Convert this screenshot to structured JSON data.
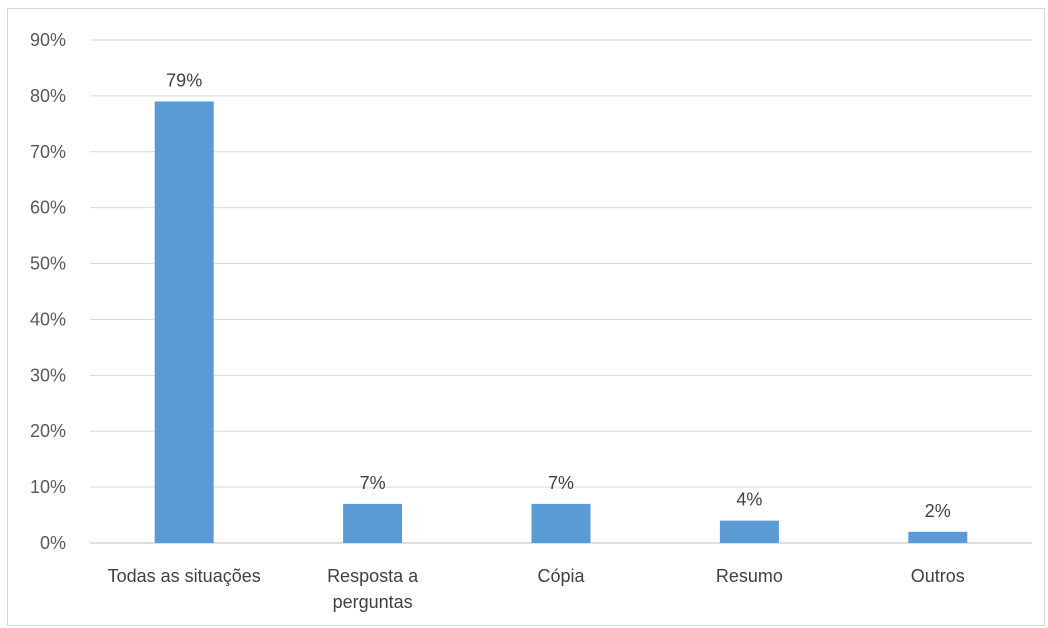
{
  "chart_data": {
    "type": "bar",
    "categories": [
      [
        "Todas as situações"
      ],
      [
        "Resposta a",
        "perguntas"
      ],
      [
        "Cópia"
      ],
      [
        "Resumo"
      ],
      [
        "Outros"
      ]
    ],
    "values": [
      79,
      7,
      7,
      4,
      2
    ],
    "data_labels": [
      "79%",
      "7%",
      "7%",
      "4%",
      "2%"
    ],
    "yticks": [
      "0%",
      "10%",
      "20%",
      "30%",
      "40%",
      "50%",
      "60%",
      "70%",
      "80%",
      "90%"
    ],
    "ylim": [
      0,
      90
    ],
    "grid": true,
    "bar_color": "#5b9bd5",
    "grid_color": "#d9d9d9"
  }
}
